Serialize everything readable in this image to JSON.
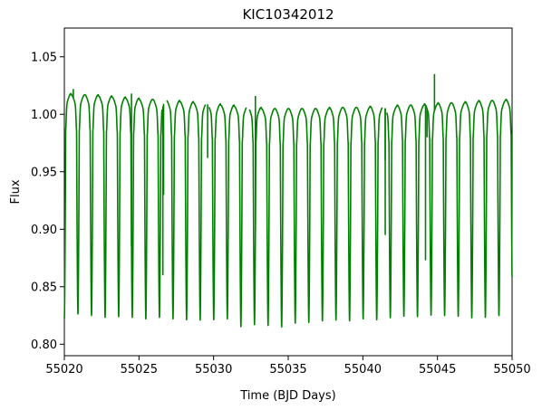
{
  "chart_data": {
    "type": "line",
    "title": "KIC10342012",
    "xlabel": "Time (BJD Days)",
    "ylabel": "Flux",
    "xlim": [
      55020,
      55050
    ],
    "ylim": [
      0.79,
      1.075
    ],
    "x_ticks": [
      55020,
      55025,
      55030,
      55035,
      55040,
      55045,
      55050
    ],
    "y_ticks": [
      0.8,
      0.85,
      0.9,
      0.95,
      1.0,
      1.05
    ],
    "x_tick_labels": [
      "55020",
      "55025",
      "55030",
      "55035",
      "55040",
      "55045",
      "55050"
    ],
    "y_tick_labels": [
      "0.80",
      "0.85",
      "0.90",
      "0.95",
      "1.00",
      "1.05"
    ],
    "grid": false,
    "line_color": "#008000",
    "series": [
      {
        "model": "periodic eclipsing light curve",
        "period_days": 0.91,
        "first_minimum_time": 55020.0,
        "minima_depths": [
          0.822,
          0.826,
          0.825,
          0.823,
          0.824,
          0.823,
          0.822,
          0.823,
          0.822,
          0.821,
          0.821,
          0.821,
          0.822,
          0.815,
          0.817,
          0.816,
          0.815,
          0.818,
          0.819,
          0.82,
          0.821,
          0.82,
          0.822,
          0.821,
          0.823,
          0.824,
          0.824,
          0.825,
          0.825,
          0.824,
          0.823,
          0.823,
          0.825,
          0.826
        ],
        "maxima_levels": [
          1.018,
          1.017,
          1.017,
          1.016,
          1.015,
          1.014,
          1.013,
          1.013,
          1.012,
          1.011,
          1.01,
          1.009,
          1.008,
          1.007,
          1.006,
          1.005,
          1.005,
          1.005,
          1.005,
          1.005,
          1.006,
          1.006,
          1.006,
          1.007,
          1.007,
          1.008,
          1.008,
          1.009,
          1.01,
          1.01,
          1.011,
          1.012,
          1.012,
          1.013
        ],
        "outliers": [
          {
            "x": 55020.6,
            "y": 1.022
          },
          {
            "x": 55024.5,
            "y": 1.018
          },
          {
            "x": 55026.6,
            "y": 0.86
          },
          {
            "x": 55026.65,
            "y": 0.93
          },
          {
            "x": 55029.6,
            "y": 0.962
          },
          {
            "x": 55032.8,
            "y": 1.016
          },
          {
            "x": 55041.5,
            "y": 0.895
          },
          {
            "x": 55041.5,
            "y": 0.96
          },
          {
            "x": 55044.2,
            "y": 0.873
          },
          {
            "x": 55044.8,
            "y": 1.035
          },
          {
            "x": 55044.3,
            "y": 0.98
          }
        ],
        "gaps": [
          [
            55026.55,
            55026.85
          ],
          [
            55029.45,
            55029.7
          ],
          [
            55032.2,
            55032.4
          ],
          [
            55041.3,
            55041.6
          ]
        ]
      }
    ]
  }
}
